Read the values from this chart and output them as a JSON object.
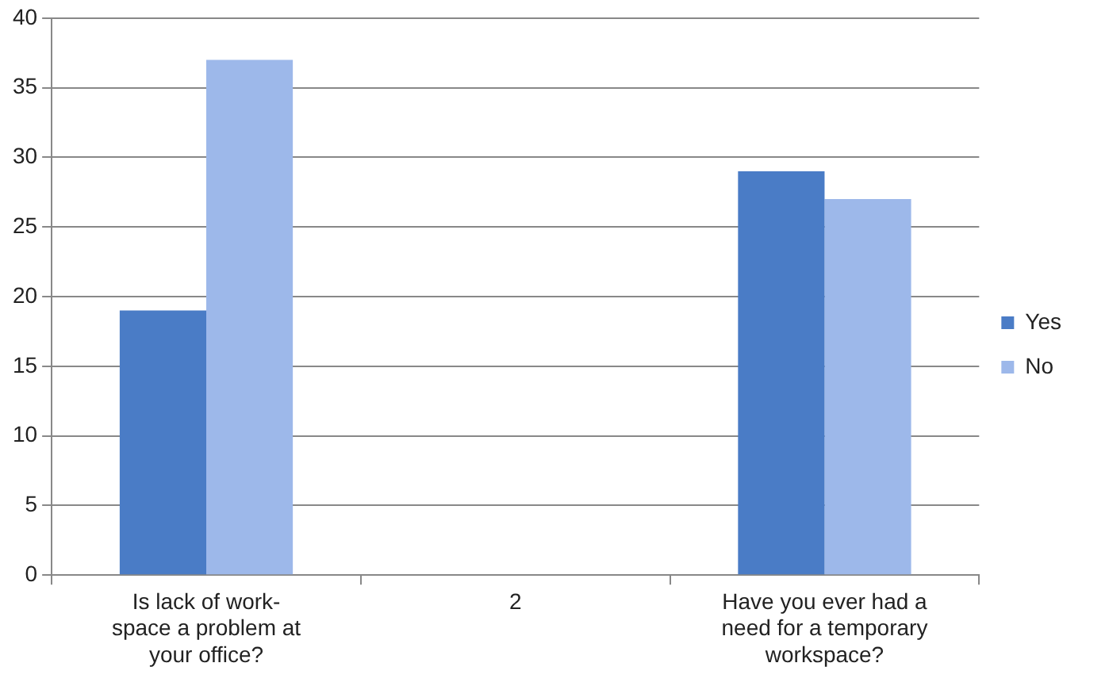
{
  "chart_data": {
    "type": "bar",
    "categories": [
      "Is lack of work-space a problem at your office?",
      "2",
      "Have you ever had a need for a temporary workspace?"
    ],
    "series": [
      {
        "name": "Yes",
        "color": "#4a7cc6",
        "values": [
          19,
          null,
          29
        ]
      },
      {
        "name": "No",
        "color": "#9db8ea",
        "values": [
          37,
          null,
          27
        ]
      }
    ],
    "ylim": [
      0,
      40
    ],
    "yticks": [
      0,
      5,
      10,
      15,
      20,
      25,
      30,
      35,
      40
    ],
    "grid": "y",
    "legend": "right"
  }
}
